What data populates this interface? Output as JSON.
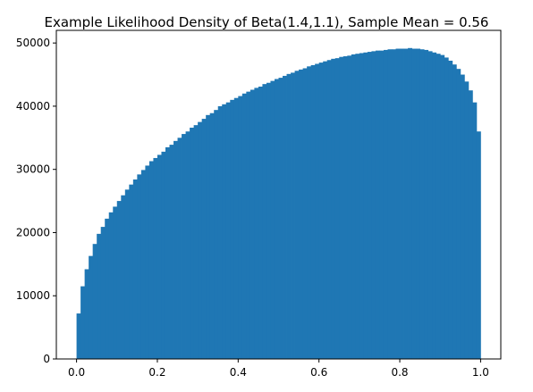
{
  "chart_data": {
    "type": "bar",
    "title": "Example Likelihood Density of Beta(1.4,1.1), Sample Mean = 0.56",
    "xlabel": "",
    "ylabel": "",
    "xlim": [
      -0.05,
      1.05
    ],
    "ylim": [
      0,
      52000
    ],
    "grid": false,
    "bar_color": "#1f77b4",
    "bin_range": [
      0,
      1
    ],
    "bin_count": 100,
    "xticks": [
      {
        "value": 0.0,
        "label": "0.0"
      },
      {
        "value": 0.2,
        "label": "0.2"
      },
      {
        "value": 0.4,
        "label": "0.4"
      },
      {
        "value": 0.6,
        "label": "0.6"
      },
      {
        "value": 0.8,
        "label": "0.8"
      },
      {
        "value": 1.0,
        "label": "1.0"
      }
    ],
    "yticks": [
      {
        "value": 0,
        "label": "0"
      },
      {
        "value": 10000,
        "label": "10000"
      },
      {
        "value": 20000,
        "label": "20000"
      },
      {
        "value": 30000,
        "label": "30000"
      },
      {
        "value": 40000,
        "label": "40000"
      },
      {
        "value": 50000,
        "label": "50000"
      }
    ],
    "values": [
      7200,
      11500,
      14200,
      16300,
      18200,
      19800,
      20900,
      22200,
      23200,
      24100,
      25000,
      25900,
      26800,
      27600,
      28400,
      29200,
      29900,
      30600,
      31300,
      31800,
      32300,
      32800,
      33500,
      33900,
      34500,
      35000,
      35600,
      36000,
      36600,
      37000,
      37500,
      38000,
      38600,
      38900,
      39400,
      40000,
      40300,
      40600,
      41000,
      41300,
      41600,
      42000,
      42300,
      42600,
      42900,
      43100,
      43500,
      43700,
      44000,
      44300,
      44500,
      44800,
      45100,
      45300,
      45600,
      45800,
      46000,
      46300,
      46500,
      46700,
      46900,
      47100,
      47300,
      47500,
      47600,
      47800,
      47900,
      48000,
      48200,
      48300,
      48400,
      48500,
      48600,
      48700,
      48800,
      48800,
      48900,
      49000,
      49000,
      49100,
      49100,
      49100,
      49200,
      49100,
      49100,
      49000,
      48900,
      48700,
      48500,
      48300,
      48100,
      47700,
      47200,
      46600,
      45900,
      45000,
      43900,
      42500,
      40600,
      36000
    ]
  }
}
